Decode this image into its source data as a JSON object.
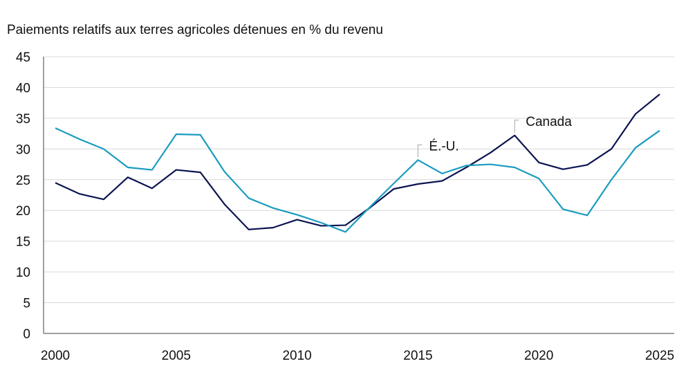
{
  "chart_data": {
    "type": "line",
    "title": "Paiements relatifs aux terres agricoles détenues en % du revenu",
    "xlabel": "",
    "ylabel": "",
    "x": [
      2000,
      2001,
      2002,
      2003,
      2004,
      2005,
      2006,
      2007,
      2008,
      2009,
      2010,
      2011,
      2012,
      2013,
      2014,
      2015,
      2016,
      2017,
      2018,
      2019,
      2020,
      2021,
      2022,
      2023,
      2024,
      2025
    ],
    "xticks": [
      2000,
      2005,
      2010,
      2015,
      2020,
      2025
    ],
    "yticks": [
      0,
      5,
      10,
      15,
      20,
      25,
      30,
      35,
      40,
      45
    ],
    "ylim": [
      0,
      45
    ],
    "xlim": [
      2000,
      2025
    ],
    "grid": "horizontal",
    "series": [
      {
        "name": "Canada",
        "color": "#0b1450",
        "label_year": 2019,
        "values": [
          24.5,
          22.7,
          21.8,
          25.4,
          23.6,
          26.6,
          26.2,
          21.0,
          16.9,
          17.2,
          18.5,
          17.5,
          17.6,
          20.4,
          23.5,
          24.3,
          24.8,
          27.0,
          29.4,
          32.2,
          27.8,
          26.7,
          27.4,
          30.0,
          35.7,
          38.9
        ]
      },
      {
        "name": "É.-U.",
        "color": "#1a9bbf",
        "label_year": 2015,
        "values": [
          33.4,
          31.6,
          30.0,
          27.0,
          26.6,
          32.4,
          32.3,
          26.3,
          22.0,
          20.4,
          19.3,
          18.0,
          16.5,
          20.5,
          24.4,
          28.2,
          26.0,
          27.3,
          27.5,
          27.0,
          25.2,
          20.2,
          19.2,
          25.0,
          30.2,
          33.0
        ]
      }
    ]
  }
}
